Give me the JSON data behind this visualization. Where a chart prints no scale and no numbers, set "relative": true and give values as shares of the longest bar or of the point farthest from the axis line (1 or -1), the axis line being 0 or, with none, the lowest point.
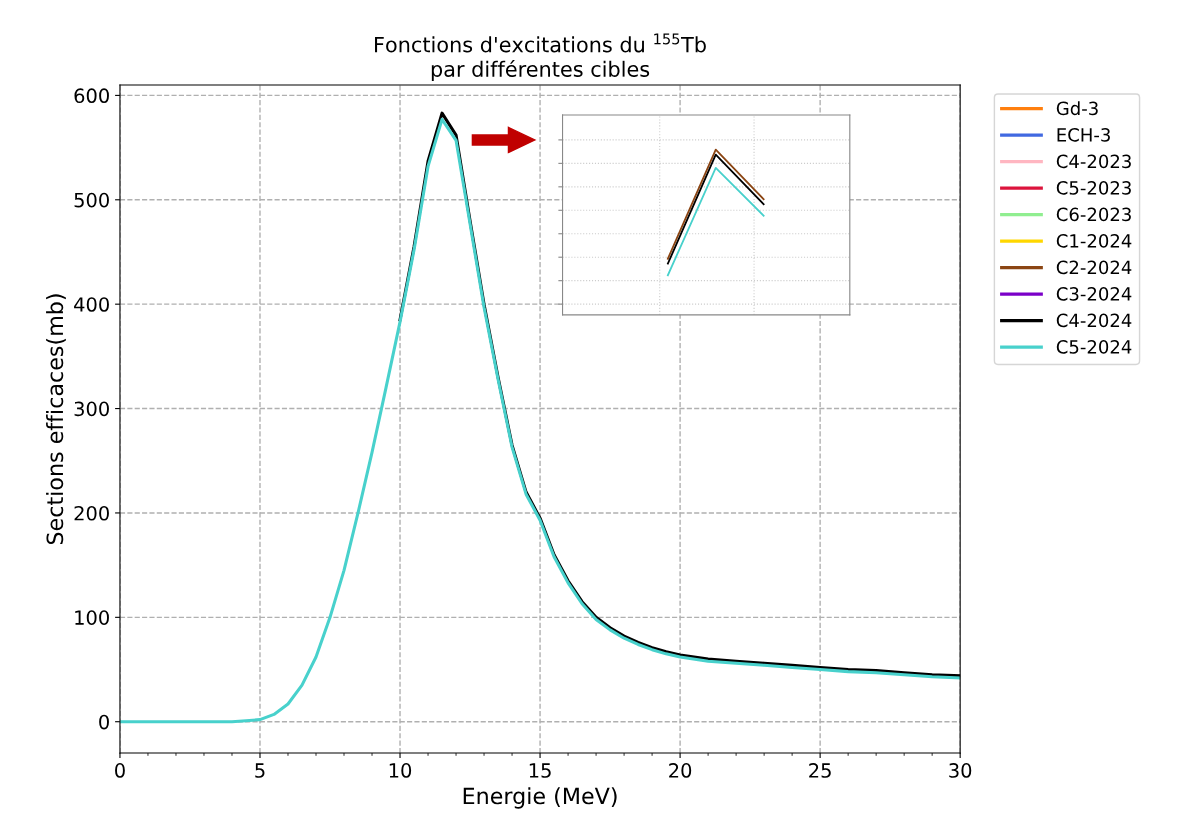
{
  "chart_data": [
    {
      "type": "line",
      "title": "Fonctions d'excitations du $^{155}$Tb\npar différentes cibles",
      "xlabel": "Energie (MeV)",
      "ylabel": "Sections efficaces(mb)",
      "x": [
        0,
        1,
        2,
        3,
        4,
        4.5,
        5,
        5.5,
        6,
        6.5,
        7,
        7.5,
        8,
        8.5,
        9,
        9.5,
        10,
        10.5,
        11,
        11.5,
        12,
        12.5,
        13,
        13.5,
        14,
        14.5,
        15,
        15.5,
        16,
        16.5,
        17,
        17.5,
        18,
        18.5,
        19,
        19.5,
        20,
        21,
        22,
        23,
        24,
        25,
        26,
        27,
        28,
        29,
        30
      ],
      "series": [
        {
          "name": "Gd-3",
          "color": "#ff7f0e",
          "values": [
            null,
            null,
            null,
            null,
            null,
            null,
            null,
            null,
            null,
            null,
            null,
            null,
            null,
            null,
            null,
            null,
            null,
            null,
            null,
            null,
            null,
            null,
            null,
            null,
            null,
            null,
            null,
            null,
            null,
            null,
            null,
            null,
            null,
            null,
            null,
            null,
            null,
            null,
            null,
            null,
            null,
            null,
            null,
            null,
            null,
            null,
            null
          ]
        },
        {
          "name": "ECH-3",
          "color": "#4169e1",
          "values": [
            null,
            null,
            null,
            null,
            null,
            null,
            null,
            null,
            null,
            null,
            null,
            null,
            null,
            null,
            null,
            null,
            null,
            null,
            null,
            null,
            null,
            null,
            null,
            null,
            null,
            null,
            null,
            null,
            null,
            null,
            null,
            null,
            null,
            null,
            null,
            null,
            null,
            null,
            null,
            null,
            null,
            null,
            null,
            null,
            null,
            null,
            null
          ]
        },
        {
          "name": "C4-2023",
          "color": "#ffb6c1",
          "values": [
            null,
            null,
            null,
            null,
            null,
            null,
            null,
            null,
            null,
            null,
            null,
            null,
            null,
            null,
            null,
            null,
            null,
            null,
            null,
            null,
            null,
            null,
            null,
            null,
            null,
            null,
            null,
            null,
            null,
            null,
            null,
            null,
            null,
            null,
            null,
            null,
            null,
            null,
            null,
            null,
            null,
            null,
            null,
            null,
            null,
            null,
            null
          ]
        },
        {
          "name": "C5-2023",
          "color": "#dc143c",
          "values": [
            null,
            null,
            null,
            null,
            null,
            null,
            null,
            null,
            null,
            null,
            null,
            null,
            null,
            null,
            null,
            null,
            null,
            null,
            null,
            null,
            null,
            null,
            null,
            null,
            null,
            null,
            null,
            null,
            null,
            null,
            null,
            null,
            null,
            null,
            null,
            null,
            null,
            null,
            null,
            null,
            null,
            null,
            null,
            null,
            null,
            null,
            null
          ]
        },
        {
          "name": "C6-2023",
          "color": "#90ee90",
          "values": [
            null,
            null,
            null,
            null,
            null,
            null,
            null,
            null,
            null,
            null,
            null,
            null,
            null,
            null,
            null,
            null,
            null,
            null,
            null,
            null,
            null,
            null,
            null,
            null,
            null,
            null,
            null,
            null,
            null,
            null,
            null,
            null,
            null,
            null,
            null,
            null,
            null,
            null,
            null,
            null,
            null,
            null,
            null,
            null,
            null,
            null,
            null
          ]
        },
        {
          "name": "C1-2024",
          "color": "#ffd700",
          "values": [
            null,
            null,
            null,
            null,
            null,
            null,
            null,
            null,
            null,
            null,
            null,
            null,
            null,
            null,
            null,
            null,
            null,
            null,
            null,
            null,
            null,
            null,
            null,
            null,
            null,
            null,
            null,
            null,
            null,
            null,
            null,
            null,
            null,
            null,
            null,
            null,
            null,
            null,
            null,
            null,
            null,
            null,
            null,
            null,
            null,
            null,
            null
          ]
        },
        {
          "name": "C2-2024",
          "color": "#8b4513",
          "values": [
            null,
            null,
            null,
            null,
            null,
            null,
            null,
            null,
            null,
            null,
            null,
            null,
            null,
            null,
            null,
            null,
            null,
            null,
            null,
            null,
            null,
            null,
            null,
            null,
            null,
            null,
            null,
            null,
            null,
            null,
            null,
            null,
            null,
            null,
            null,
            null,
            null,
            null,
            null,
            null,
            null,
            null,
            null,
            null,
            null,
            null,
            null
          ]
        },
        {
          "name": "C3-2024",
          "color": "#7b00c8",
          "values": [
            null,
            null,
            null,
            null,
            null,
            null,
            null,
            null,
            null,
            null,
            null,
            null,
            null,
            null,
            null,
            null,
            null,
            null,
            null,
            null,
            null,
            null,
            null,
            null,
            null,
            null,
            null,
            null,
            null,
            null,
            null,
            null,
            null,
            null,
            null,
            null,
            null,
            null,
            null,
            null,
            null,
            null,
            null,
            null,
            null,
            null,
            null
          ]
        },
        {
          "name": "C4-2024",
          "color": "#000000",
          "values": [
            null,
            null,
            null,
            null,
            null,
            null,
            null,
            null,
            null,
            null,
            null,
            null,
            null,
            null,
            null,
            null,
            385,
            455,
            537,
            583,
            562,
            480,
            400,
            330,
            265,
            220,
            195,
            160,
            135,
            115,
            100,
            90,
            82,
            76,
            71,
            67,
            64,
            60,
            58,
            56,
            54,
            52,
            50,
            49,
            47,
            45,
            44
          ]
        },
        {
          "name": "C5-2024",
          "color": "#48d1cc",
          "values": [
            0,
            0,
            0,
            0,
            0,
            1,
            2,
            7,
            17,
            35,
            62,
            100,
            145,
            200,
            258,
            320,
            383,
            452,
            532,
            577,
            557,
            477,
            397,
            328,
            263,
            218,
            193,
            158,
            133,
            113,
            98,
            88,
            80,
            74,
            69,
            65,
            62,
            58,
            56,
            54,
            52,
            50,
            48,
            47,
            45,
            43,
            42
          ]
        }
      ],
      "xlim": [
        0,
        30
      ],
      "ylim": [
        -30,
        610
      ],
      "xticks": [
        0,
        5,
        10,
        15,
        20,
        25,
        30
      ],
      "yticks": [
        0,
        100,
        200,
        300,
        400,
        500,
        600
      ],
      "grid": true,
      "legend": "top right",
      "line_style": "solid",
      "marker": "none"
    },
    {
      "type": "line",
      "categories": [
        null,
        null,
        null
      ],
      "relative": true,
      "series": [
        {
          "color": "#8b4513",
          "values": [
            0.34,
            1,
            0.7
          ]
        },
        {
          "color": "#000000",
          "values": [
            0.31,
            0.97,
            0.67
          ]
        },
        {
          "color": "#48d1cc",
          "values": [
            0.24,
            0.89,
            0.6
          ]
        }
      ],
      "line_style": "solid",
      "marker": "none"
    }
  ]
}
